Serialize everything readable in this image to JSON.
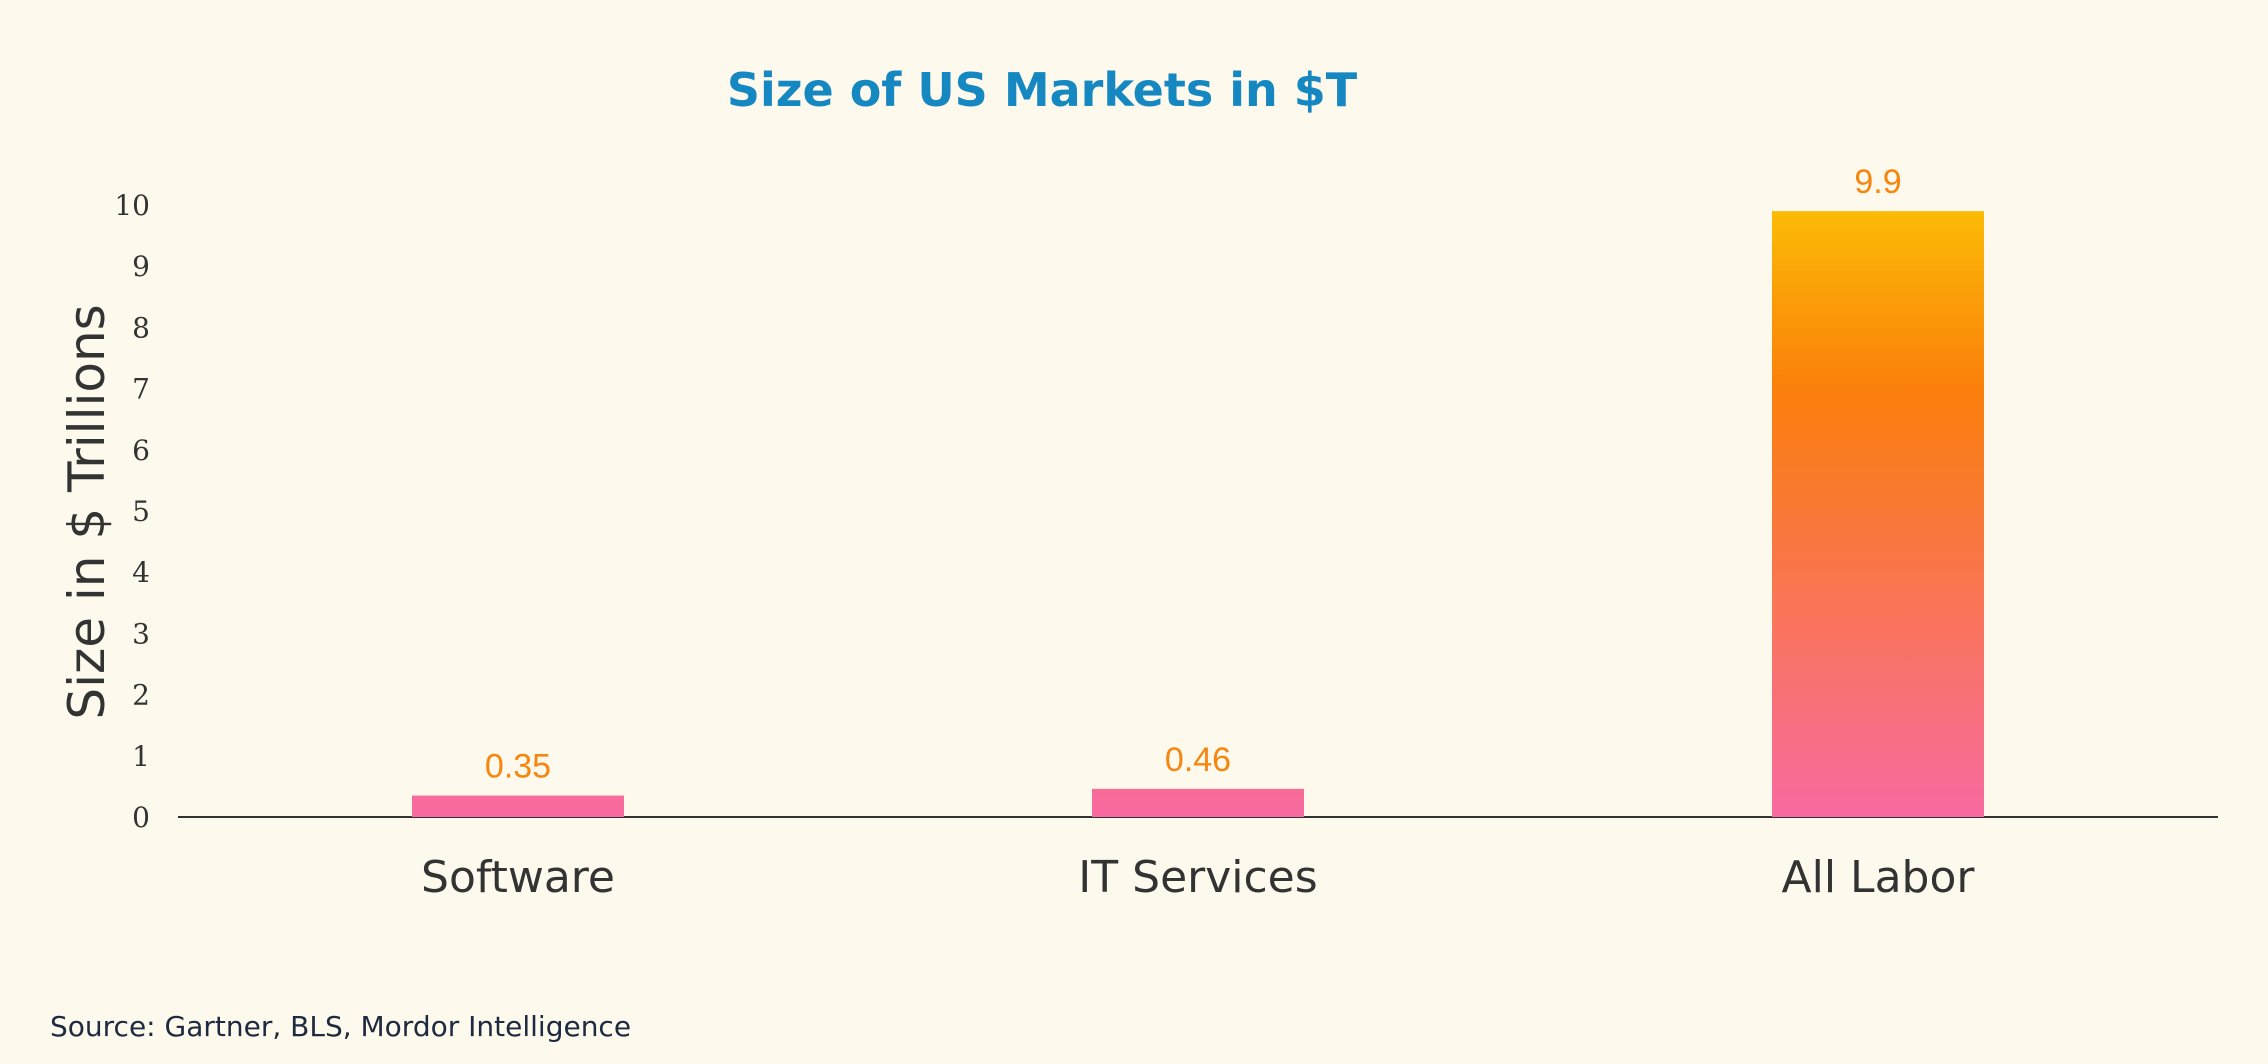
{
  "chart_data": {
    "type": "bar",
    "title": "Size of US Markets in $T",
    "xlabel": "",
    "ylabel": "Size in $ Trillions",
    "categories": [
      "Software",
      "IT Services",
      "All Labor"
    ],
    "values": [
      0.35,
      0.46,
      9.9
    ],
    "data_labels": [
      "0.35",
      "0.46",
      "9.9"
    ],
    "ylim": [
      0,
      10
    ],
    "yticks": [
      0,
      1,
      2,
      3,
      4,
      5,
      6,
      7,
      8,
      9,
      10
    ],
    "grid": false,
    "legend": "none"
  },
  "source": "Source: Gartner, BLS, Mordor Intelligence",
  "colors": {
    "background": "#fdf9ed",
    "title": "#1587c1",
    "axis_text": "#333333",
    "data_label": "#f7860f",
    "source_text": "#1d2a3f",
    "bar_gradient_top": "#fbbd05",
    "bar_gradient_mid": "#fb7f0b",
    "bar_gradient_bottom": "#f86aa1"
  }
}
